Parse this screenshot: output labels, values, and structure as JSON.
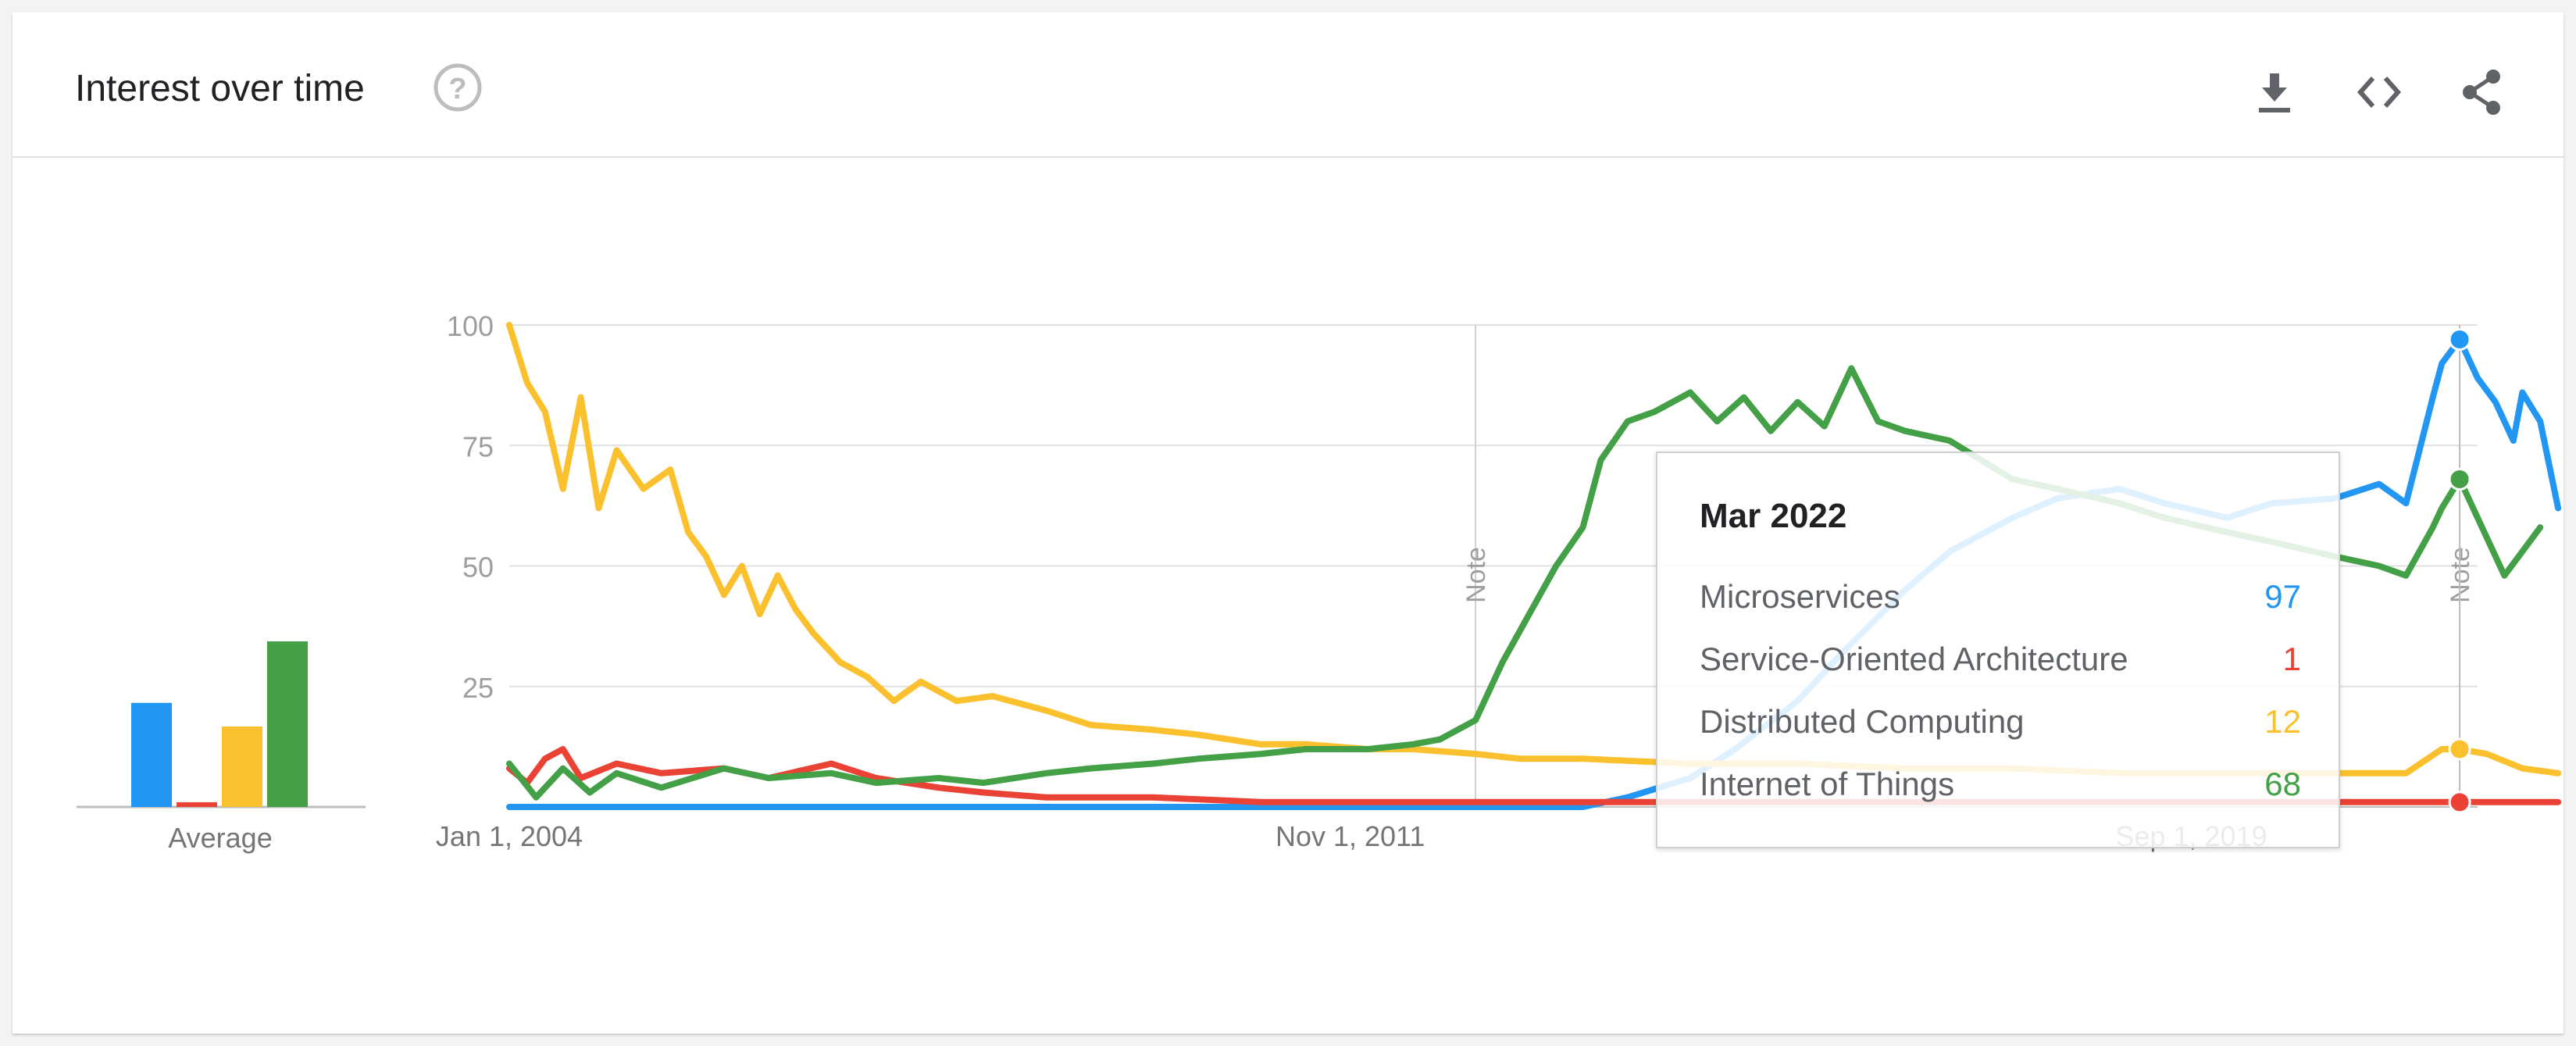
{
  "header": {
    "title": "Interest over time",
    "help_icon": "help-circle-icon",
    "actions": [
      "download-icon",
      "embed-code-icon",
      "share-icon"
    ]
  },
  "chart_data": {
    "type": "line",
    "title": "",
    "xlabel": "",
    "ylabel": "",
    "ylim": [
      0,
      100
    ],
    "y_ticks": [
      "100",
      "75",
      "50",
      "25"
    ],
    "x_ticks": [
      {
        "label": "Jan 1, 2004",
        "x": "2004-01"
      },
      {
        "label": "Nov 1, 2011",
        "x": "2011-11"
      },
      {
        "label": "Sep 1, 2019",
        "x": "2019-09"
      }
    ],
    "x_range": [
      "2004-01",
      "2022-05"
    ],
    "grid": true,
    "notes": [
      {
        "label": "Note",
        "x": "2013-01"
      },
      {
        "label": "Note",
        "x": "2022-03"
      }
    ],
    "average_chart": {
      "label": "Average",
      "values": [
        22,
        1,
        17,
        35
      ]
    },
    "series": [
      {
        "name": "Microservices",
        "color": "#2196F3",
        "points": [
          [
            "2004-01",
            0
          ],
          [
            "2014-01",
            0
          ],
          [
            "2014-06",
            2
          ],
          [
            "2015-01",
            6
          ],
          [
            "2015-06",
            12
          ],
          [
            "2016-01",
            22
          ],
          [
            "2016-06",
            32
          ],
          [
            "2017-01",
            45
          ],
          [
            "2017-06",
            53
          ],
          [
            "2018-01",
            60
          ],
          [
            "2018-06",
            64
          ],
          [
            "2019-01",
            66
          ],
          [
            "2019-06",
            63
          ],
          [
            "2020-01",
            60
          ],
          [
            "2020-06",
            63
          ],
          [
            "2021-01",
            64
          ],
          [
            "2021-06",
            67
          ],
          [
            "2021-09",
            63
          ],
          [
            "2021-12",
            85
          ],
          [
            "2022-01",
            92
          ],
          [
            "2022-03",
            97
          ],
          [
            "2022-05",
            89
          ],
          [
            "2022-07",
            84
          ],
          [
            "2022-09",
            76
          ],
          [
            "2022-10",
            86
          ],
          [
            "2022-12",
            80
          ],
          [
            "2023-02",
            62
          ]
        ]
      },
      {
        "name": "Service-Oriented Architecture",
        "color": "#EA4335",
        "points": [
          [
            "2004-01",
            8
          ],
          [
            "2004-03",
            5
          ],
          [
            "2004-05",
            10
          ],
          [
            "2004-07",
            12
          ],
          [
            "2004-09",
            6
          ],
          [
            "2005-01",
            9
          ],
          [
            "2005-06",
            7
          ],
          [
            "2006-01",
            8
          ],
          [
            "2006-06",
            6
          ],
          [
            "2007-01",
            9
          ],
          [
            "2007-06",
            6
          ],
          [
            "2008-01",
            4
          ],
          [
            "2008-06",
            3
          ],
          [
            "2009-01",
            2
          ],
          [
            "2010-01",
            2
          ],
          [
            "2011-01",
            1
          ],
          [
            "2012-01",
            1
          ],
          [
            "2014-01",
            1
          ],
          [
            "2016-01",
            1
          ],
          [
            "2018-01",
            1
          ],
          [
            "2020-01",
            1
          ],
          [
            "2022-03",
            1
          ],
          [
            "2023-02",
            1
          ]
        ]
      },
      {
        "name": "Distributed Computing",
        "color": "#FBC02D",
        "points": [
          [
            "2004-01",
            100
          ],
          [
            "2004-03",
            88
          ],
          [
            "2004-05",
            82
          ],
          [
            "2004-07",
            66
          ],
          [
            "2004-09",
            85
          ],
          [
            "2004-11",
            62
          ],
          [
            "2005-01",
            74
          ],
          [
            "2005-04",
            66
          ],
          [
            "2005-07",
            70
          ],
          [
            "2005-09",
            57
          ],
          [
            "2005-11",
            52
          ],
          [
            "2006-01",
            44
          ],
          [
            "2006-03",
            50
          ],
          [
            "2006-05",
            40
          ],
          [
            "2006-07",
            48
          ],
          [
            "2006-09",
            41
          ],
          [
            "2006-11",
            36
          ],
          [
            "2007-02",
            30
          ],
          [
            "2007-05",
            27
          ],
          [
            "2007-08",
            22
          ],
          [
            "2007-11",
            26
          ],
          [
            "2008-03",
            22
          ],
          [
            "2008-07",
            23
          ],
          [
            "2009-01",
            20
          ],
          [
            "2009-06",
            17
          ],
          [
            "2010-01",
            16
          ],
          [
            "2010-06",
            15
          ],
          [
            "2011-01",
            13
          ],
          [
            "2011-06",
            13
          ],
          [
            "2012-01",
            12
          ],
          [
            "2012-06",
            12
          ],
          [
            "2013-01",
            11
          ],
          [
            "2013-06",
            10
          ],
          [
            "2014-01",
            10
          ],
          [
            "2015-01",
            9
          ],
          [
            "2016-01",
            9
          ],
          [
            "2017-01",
            8
          ],
          [
            "2018-01",
            8
          ],
          [
            "2019-01",
            7
          ],
          [
            "2020-01",
            7
          ],
          [
            "2021-01",
            7
          ],
          [
            "2021-09",
            7
          ],
          [
            "2022-01",
            12
          ],
          [
            "2022-03",
            12
          ],
          [
            "2022-06",
            11
          ],
          [
            "2022-10",
            8
          ],
          [
            "2023-02",
            7
          ]
        ]
      },
      {
        "name": "Internet of Things",
        "color": "#43A047",
        "points": [
          [
            "2004-01",
            9
          ],
          [
            "2004-04",
            2
          ],
          [
            "2004-07",
            8
          ],
          [
            "2004-10",
            3
          ],
          [
            "2005-01",
            7
          ],
          [
            "2005-06",
            4
          ],
          [
            "2006-01",
            8
          ],
          [
            "2006-06",
            6
          ],
          [
            "2007-01",
            7
          ],
          [
            "2007-06",
            5
          ],
          [
            "2008-01",
            6
          ],
          [
            "2008-06",
            5
          ],
          [
            "2009-01",
            7
          ],
          [
            "2009-06",
            8
          ],
          [
            "2010-01",
            9
          ],
          [
            "2010-06",
            10
          ],
          [
            "2011-01",
            11
          ],
          [
            "2011-06",
            12
          ],
          [
            "2012-01",
            12
          ],
          [
            "2012-06",
            13
          ],
          [
            "2012-09",
            14
          ],
          [
            "2013-01",
            18
          ],
          [
            "2013-04",
            30
          ],
          [
            "2013-07",
            40
          ],
          [
            "2013-10",
            50
          ],
          [
            "2014-01",
            58
          ],
          [
            "2014-03",
            72
          ],
          [
            "2014-06",
            80
          ],
          [
            "2014-09",
            82
          ],
          [
            "2015-01",
            86
          ],
          [
            "2015-04",
            80
          ],
          [
            "2015-07",
            85
          ],
          [
            "2015-10",
            78
          ],
          [
            "2016-01",
            84
          ],
          [
            "2016-04",
            79
          ],
          [
            "2016-07",
            91
          ],
          [
            "2016-10",
            80
          ],
          [
            "2017-01",
            78
          ],
          [
            "2017-06",
            76
          ],
          [
            "2018-01",
            68
          ],
          [
            "2018-06",
            66
          ],
          [
            "2019-01",
            63
          ],
          [
            "2019-06",
            60
          ],
          [
            "2020-01",
            57
          ],
          [
            "2020-06",
            55
          ],
          [
            "2021-01",
            52
          ],
          [
            "2021-06",
            50
          ],
          [
            "2021-09",
            48
          ],
          [
            "2021-12",
            58
          ],
          [
            "2022-01",
            62
          ],
          [
            "2022-03",
            68
          ],
          [
            "2022-05",
            60
          ],
          [
            "2022-08",
            48
          ],
          [
            "2022-10",
            53
          ],
          [
            "2022-12",
            58
          ]
        ]
      }
    ]
  },
  "tooltip": {
    "date": "Mar 2022",
    "rows": [
      {
        "label": "Microservices",
        "value": "97",
        "color": "#2196F3"
      },
      {
        "label": "Service-Oriented Architecture",
        "value": "1",
        "color": "#EA4335"
      },
      {
        "label": "Distributed Computing",
        "value": "12",
        "color": "#FBC02D"
      },
      {
        "label": "Internet of Things",
        "value": "68",
        "color": "#43A047"
      }
    ]
  }
}
